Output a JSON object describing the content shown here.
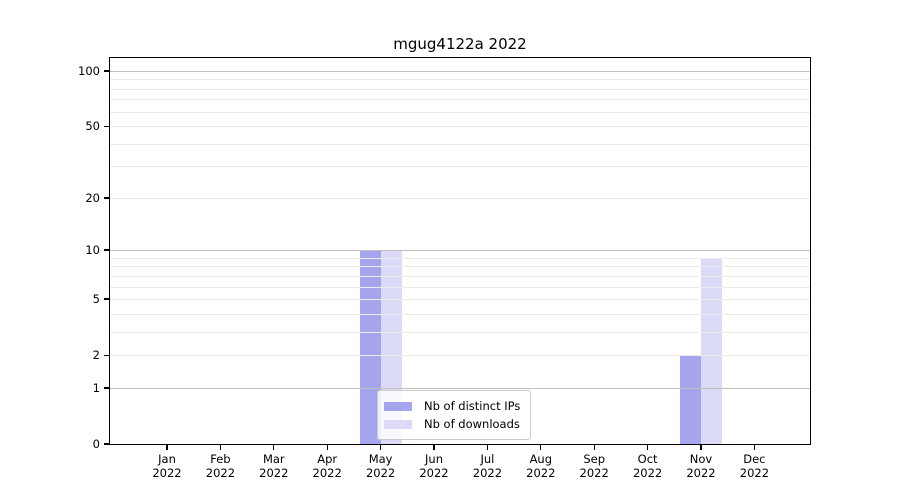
{
  "chart_data": {
    "type": "bar",
    "title": "mgug4122a 2022",
    "categories": [
      "Jan 2022",
      "Feb 2022",
      "Mar 2022",
      "Apr 2022",
      "May 2022",
      "Jun 2022",
      "Jul 2022",
      "Aug 2022",
      "Sep 2022",
      "Oct 2022",
      "Nov 2022",
      "Dec 2022"
    ],
    "series": [
      {
        "name": "Nb of distinct IPs",
        "color": "#a5a5ee",
        "values": [
          0,
          0,
          0,
          0,
          10,
          0,
          0,
          0,
          0,
          0,
          2,
          0
        ]
      },
      {
        "name": "Nb of downloads",
        "color": "#dbdbf7",
        "values": [
          0,
          0,
          0,
          0,
          10,
          0,
          0,
          0,
          0,
          0,
          9,
          0
        ]
      }
    ],
    "yscale": "log1p",
    "ylim": [
      0,
      100
    ],
    "ytick_values": [
      0,
      1,
      2,
      5,
      10,
      20,
      50,
      100
    ],
    "ytick_labels": [
      "0",
      "1",
      "2",
      "5",
      "10",
      "20",
      "50",
      "100"
    ],
    "major_gridline_values": [
      1,
      10,
      100
    ],
    "minor_gridline_values": [
      2,
      3,
      4,
      5,
      6,
      7,
      8,
      9,
      20,
      30,
      40,
      50,
      60,
      70,
      80,
      90
    ],
    "grid": true,
    "legend_position": "lower-center-inside",
    "colors": {
      "major_grid": "#c0c0c0",
      "minor_grid": "#ececec",
      "spine": "#000000",
      "background": "#ffffff"
    }
  }
}
